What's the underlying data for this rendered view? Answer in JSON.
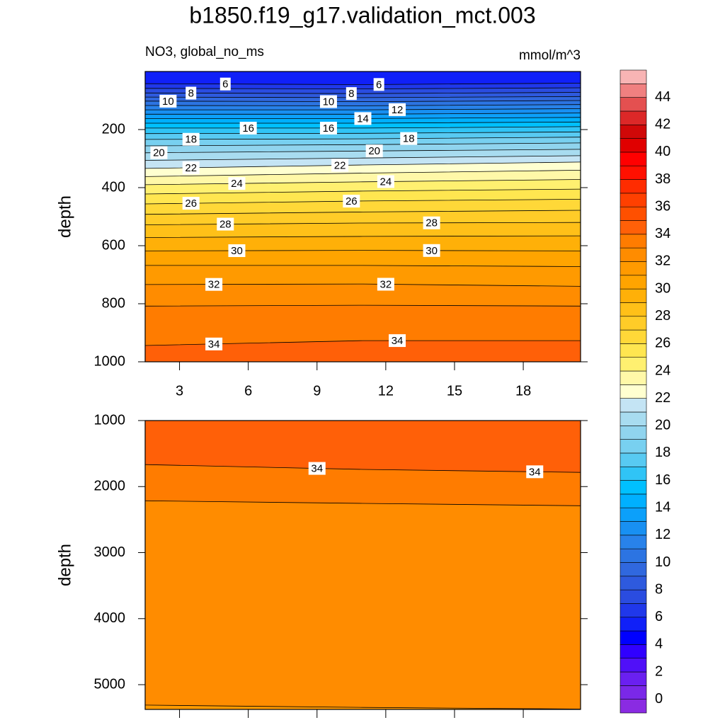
{
  "title": "b1850.f19_g17.validation_mct.003",
  "chart_data": [
    {
      "type": "contour",
      "subtitle_left": "NO3, global_no_ms",
      "subtitle_right": "mmol/m^3",
      "ylabel": "depth",
      "xlim": [
        1.5,
        20.5
      ],
      "xticks": [
        3,
        6,
        9,
        12,
        15,
        18
      ],
      "show_xtick_labels": true,
      "ylim": [
        0,
        1000
      ],
      "y_inverted": true,
      "yticks": [
        200,
        400,
        600,
        800,
        1000
      ],
      "x": [
        1.5,
        11,
        20.5
      ],
      "contours": [
        {
          "level": 6,
          "depths": [
            42,
            45,
            40
          ],
          "label_x": [
            5.0,
            11.7
          ]
        },
        {
          "level": 7,
          "depths": [
            58,
            60,
            56
          ],
          "label_x": []
        },
        {
          "level": 8,
          "depths": [
            74,
            76,
            72
          ],
          "label_x": [
            3.5,
            10.5
          ]
        },
        {
          "level": 9,
          "depths": [
            88,
            90,
            86
          ],
          "label_x": []
        },
        {
          "level": 10,
          "depths": [
            102,
            104,
            100
          ],
          "label_x": [
            2.5,
            9.5
          ]
        },
        {
          "level": 11,
          "depths": [
            117,
            118,
            114
          ],
          "label_x": []
        },
        {
          "level": 12,
          "depths": [
            132,
            132,
            128
          ],
          "label_x": [
            12.5
          ]
        },
        {
          "level": 13,
          "depths": [
            147,
            147,
            143
          ],
          "label_x": []
        },
        {
          "level": 14,
          "depths": [
            162,
            162,
            158
          ],
          "label_x": [
            11.0
          ]
        },
        {
          "level": 15,
          "depths": [
            178,
            178,
            174
          ],
          "label_x": []
        },
        {
          "level": 16,
          "depths": [
            195,
            195,
            190
          ],
          "label_x": [
            6.0,
            9.5
          ]
        },
        {
          "level": 17,
          "depths": [
            214,
            213,
            208
          ],
          "label_x": []
        },
        {
          "level": 18,
          "depths": [
            234,
            232,
            226
          ],
          "label_x": [
            3.5,
            13.0
          ]
        },
        {
          "level": 19,
          "depths": [
            256,
            252,
            246
          ],
          "label_x": []
        },
        {
          "level": 20,
          "depths": [
            280,
            274,
            268
          ],
          "label_x": [
            2.1,
            11.5
          ]
        },
        {
          "level": 21,
          "depths": [
            306,
            298,
            290
          ],
          "label_x": []
        },
        {
          "level": 22,
          "depths": [
            334,
            322,
            312
          ],
          "label_x": [
            3.5,
            10.0
          ]
        },
        {
          "level": 23,
          "depths": [
            362,
            350,
            340
          ],
          "label_x": []
        },
        {
          "level": 24,
          "depths": [
            390,
            380,
            372
          ],
          "label_x": [
            5.5,
            12.0
          ]
        },
        {
          "level": 25,
          "depths": [
            422,
            412,
            405
          ],
          "label_x": []
        },
        {
          "level": 26,
          "depths": [
            456,
            446,
            440
          ],
          "label_x": [
            3.5,
            10.5
          ]
        },
        {
          "level": 27,
          "depths": [
            492,
            484,
            478
          ],
          "label_x": []
        },
        {
          "level": 28,
          "depths": [
            528,
            522,
            520
          ],
          "label_x": [
            5.0,
            14.0
          ]
        },
        {
          "level": 29,
          "depths": [
            572,
            568,
            566
          ],
          "label_x": []
        },
        {
          "level": 30,
          "depths": [
            618,
            616,
            618
          ],
          "label_x": [
            5.5,
            14.0
          ]
        },
        {
          "level": 31,
          "depths": [
            668,
            668,
            672
          ],
          "label_x": []
        },
        {
          "level": 32,
          "depths": [
            734,
            732,
            740
          ],
          "label_x": [
            4.5,
            12.0
          ]
        },
        {
          "level": 33,
          "depths": [
            808,
            805,
            808
          ],
          "label_x": []
        },
        {
          "level": 34,
          "depths": [
            944,
            927,
            927
          ],
          "label_x": [
            4.5,
            12.5
          ]
        }
      ]
    },
    {
      "type": "contour",
      "ylabel": "depth",
      "xlim": [
        1.5,
        20.5
      ],
      "xticks": [
        3,
        6,
        9,
        12,
        15,
        18
      ],
      "show_xtick_labels": false,
      "ylim": [
        1000,
        5375
      ],
      "y_inverted": true,
      "yticks": [
        1000,
        2000,
        3000,
        4000,
        5000
      ],
      "x": [
        1.5,
        11,
        20.5
      ],
      "contours": [
        {
          "level": 34,
          "depths": [
            1667,
            1740,
            1785
          ],
          "label_x": [
            9.0,
            18.5
          ]
        },
        {
          "level": 33,
          "depths": [
            2215,
            2255,
            2290
          ],
          "label_x": []
        },
        {
          "level": 32,
          "depths": [
            5310,
            5345,
            5370
          ],
          "label_x": []
        }
      ]
    }
  ],
  "colorbar": {
    "levels": [
      0,
      1,
      2,
      3,
      4,
      5,
      6,
      7,
      8,
      9,
      10,
      11,
      12,
      13,
      14,
      15,
      16,
      17,
      18,
      19,
      20,
      21,
      22,
      23,
      24,
      25,
      26,
      27,
      28,
      29,
      30,
      31,
      32,
      33,
      34,
      35,
      36,
      37,
      38,
      39,
      40,
      41,
      42,
      43,
      44,
      45
    ],
    "ticks": [
      0,
      2,
      4,
      6,
      8,
      10,
      12,
      14,
      16,
      18,
      20,
      22,
      24,
      26,
      28,
      30,
      32,
      34,
      36,
      38,
      40,
      42,
      44
    ],
    "colors": [
      "#8a2be2",
      "#7a28e8",
      "#6a20f0",
      "#5010f8",
      "#3000ff",
      "#0000ff",
      "#1020f8",
      "#2038ea",
      "#2a4ce0",
      "#2e5ade",
      "#3068de",
      "#2c74e2",
      "#2882ea",
      "#1890f2",
      "#0ca0fa",
      "#00b0ff",
      "#00c0ff",
      "#30c4f6",
      "#58caf2",
      "#78d0f0",
      "#90d4ee",
      "#a8dcf0",
      "#c4e4f4",
      "#ffffd0",
      "#fff8a8",
      "#fff070",
      "#ffe650",
      "#ffd838",
      "#ffcc28",
      "#ffc018",
      "#ffb008",
      "#ffa400",
      "#ff9a00",
      "#ff8c00",
      "#ff7c00",
      "#ff6008",
      "#ff5000",
      "#ff4000",
      "#ff2c00",
      "#ff1000",
      "#ff0000",
      "#e00000",
      "#d00808",
      "#dc2828",
      "#e45050",
      "#f08080",
      "#f8b4b4"
    ]
  }
}
